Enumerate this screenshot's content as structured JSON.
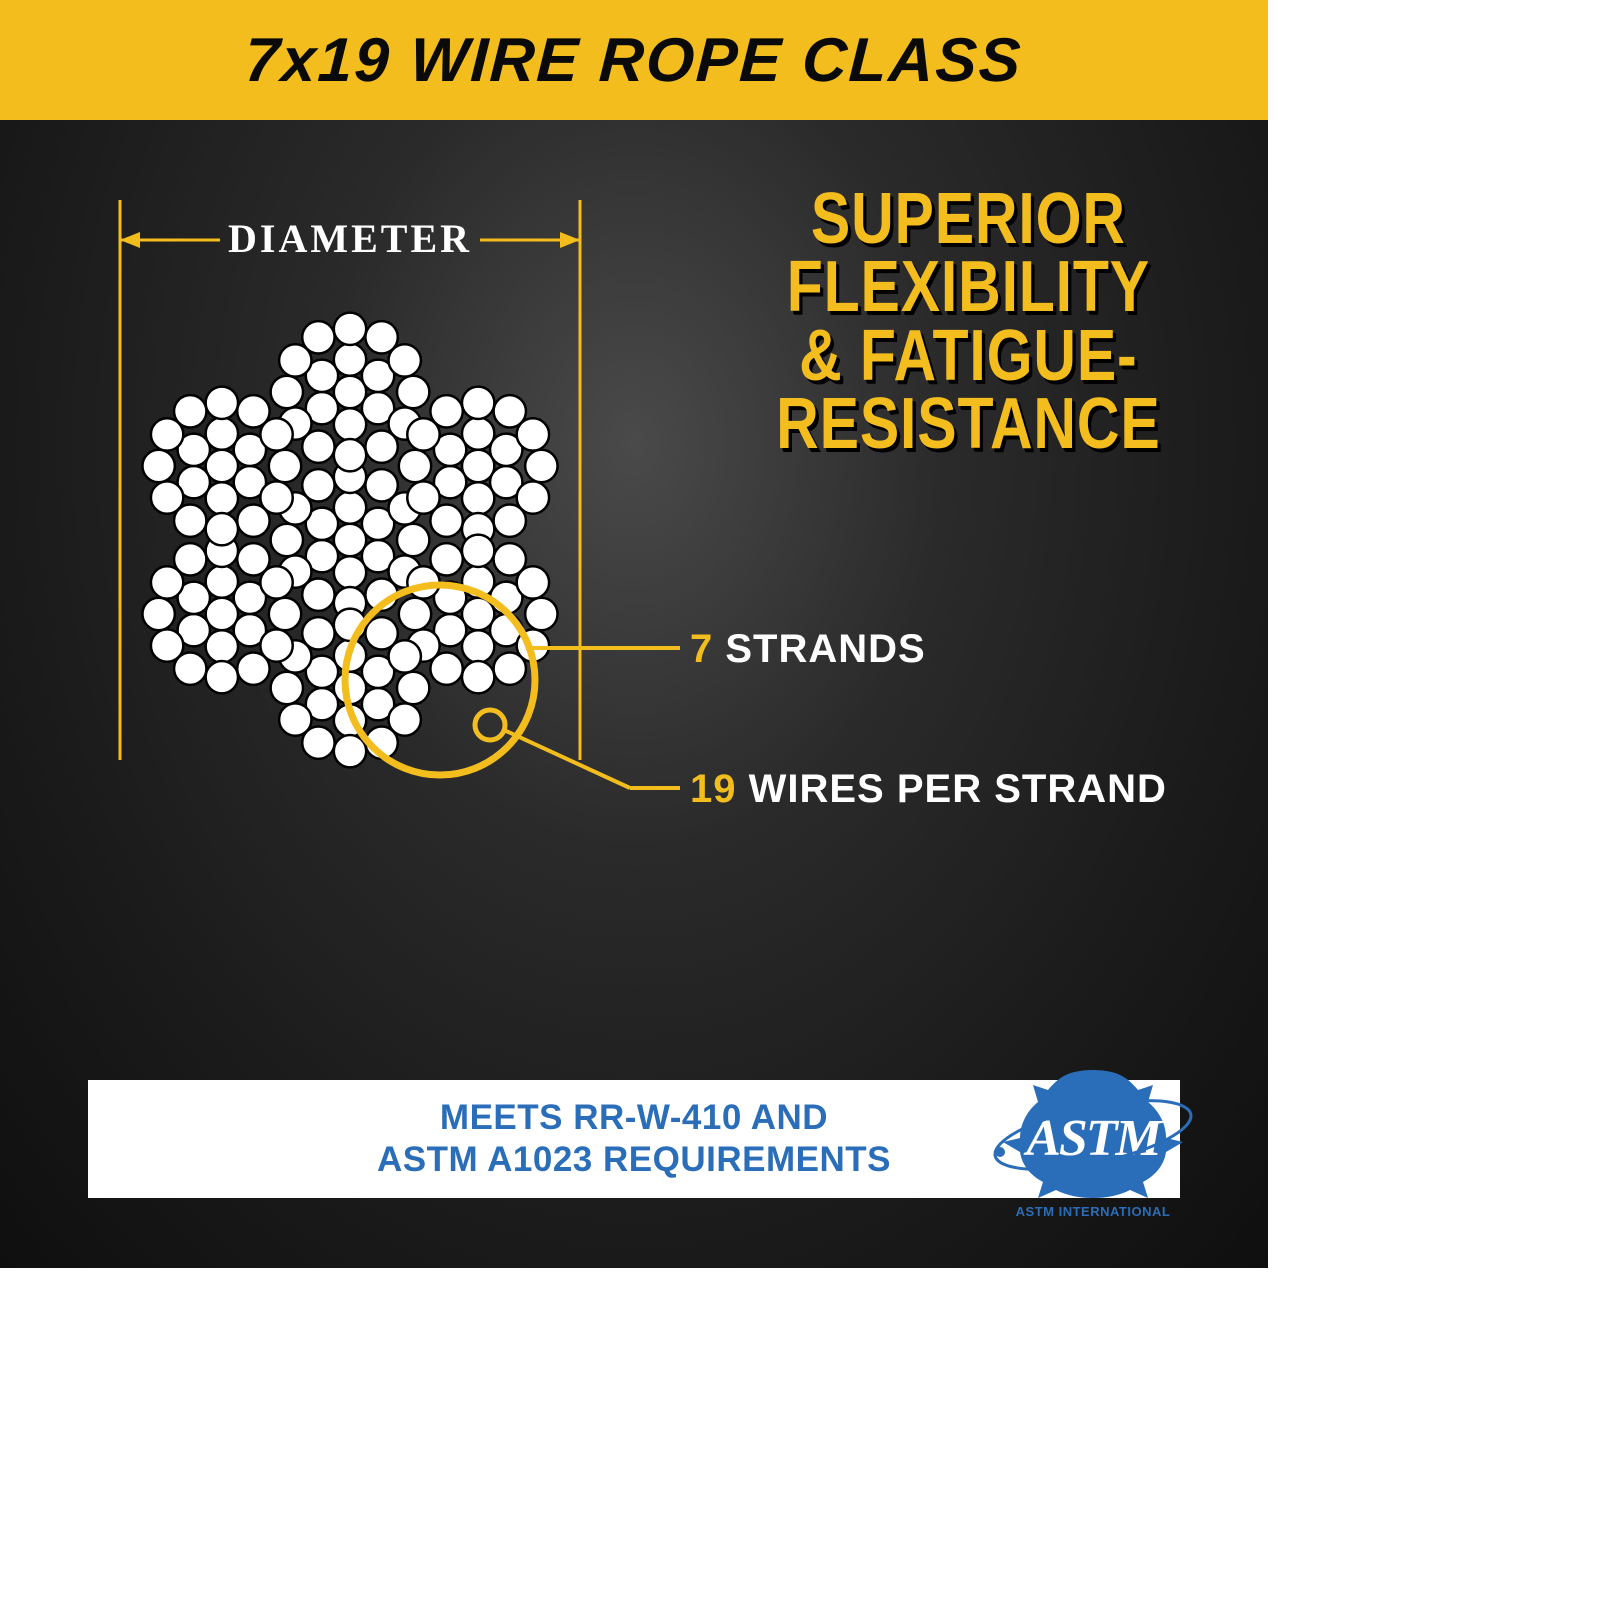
{
  "header": {
    "title": "7x19 WIRE ROPE CLASS"
  },
  "tagline": {
    "lines": [
      "SUPERIOR",
      "FLEXIBILITY",
      "& FATIGUE-",
      "RESISTANCE"
    ],
    "color": "#f3bd1e",
    "shadow_color": "#000000",
    "fontsize": 72
  },
  "diagram": {
    "diameter_label": "DIAMETER",
    "strand_callout": {
      "num": "7",
      "label": " STRANDS"
    },
    "wire_callout": {
      "num": "19",
      "label": " WIRES PER STRAND"
    },
    "wire_fill": "#ffffff",
    "wire_stroke": "#000000",
    "accent_color": "#f3bd1e",
    "label_color": "#ffffff",
    "num_strands": 7,
    "wires_per_strand": 19
  },
  "footer": {
    "line1": "MEETS RR-W-410 AND",
    "line2": "ASTM A1023 REQUIREMENTS",
    "text_color": "#2a6db8",
    "bg_color": "#ffffff"
  },
  "logo": {
    "text": "ASTM",
    "subtext": "ASTM INTERNATIONAL",
    "color": "#2a6db8"
  },
  "colors": {
    "header_bg": "#f3bd1e",
    "canvas_bg_inner": "#4a4a4a",
    "canvas_bg_outer": "#0f0f0f",
    "accent": "#f3bd1e"
  }
}
